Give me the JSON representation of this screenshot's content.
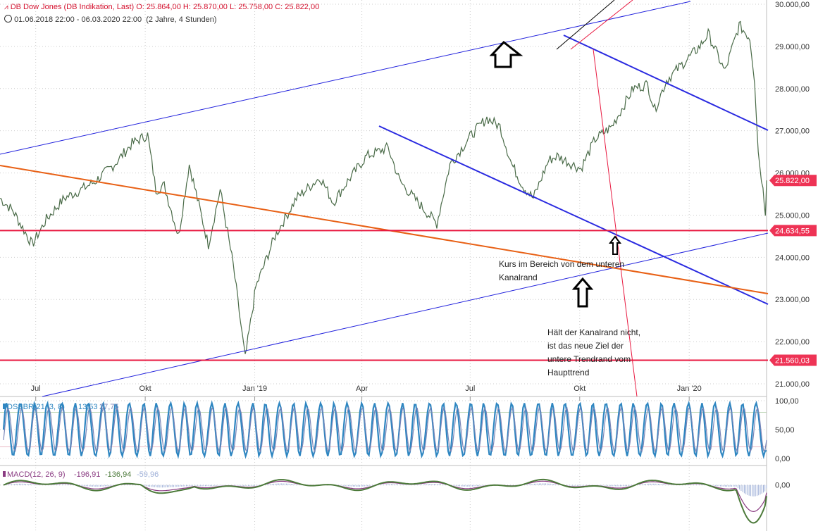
{
  "header": {
    "instrument": "DB Dow Jones (DB Indikation, Last)",
    "open": "O: 25.864,00",
    "high": "H: 25.870,00",
    "low": "L: 25.758,00",
    "close": "C: 25.822,00",
    "period": "01.06.2018 22:00 - 06.03.2020 22:00",
    "interval": "(2 Jahre, 4 Stunden)"
  },
  "colors": {
    "price": "#4a6b48",
    "trend_blue_thin": "#2222dd",
    "trend_blue_thick": "#2a2ae0",
    "support_red": "#e8173f",
    "orange": "#e86015",
    "badge": "#ee3355",
    "osc_blue": "#2e86c1",
    "osc_mid": "#7a86b8",
    "macd_green": "#4c7a3a",
    "macd_purple": "#8a3b82"
  },
  "chart_data": [
    {
      "type": "line",
      "name": "price-panel",
      "y_ticks": [
        "30.000,00",
        "29.000,00",
        "28.000,00",
        "27.000,00",
        "26.000,00",
        "25.000,00",
        "24.000,00",
        "23.000,00",
        "22.000,00",
        "21.000,00"
      ],
      "y_tick_values": [
        30000,
        29000,
        28000,
        27000,
        26000,
        25000,
        24000,
        23000,
        22000,
        21000
      ],
      "ylim": [
        20700,
        30100
      ],
      "x_ticks": [
        "Jul",
        "Okt",
        "Jan '19",
        "Apr",
        "Jul",
        "Okt",
        "Jan '20"
      ],
      "x_tick_dates": [
        "2018-07-01",
        "2018-10-01",
        "2019-01-01",
        "2019-04-01",
        "2019-07-01",
        "2019-10-01",
        "2020-01-01"
      ],
      "xlim": [
        "2018-06-01",
        "2020-03-06"
      ],
      "grid": true,
      "last_price_badge": "25.822,00",
      "last_price": 25822,
      "levels": [
        {
          "label": "24.634,55",
          "value": 24634.55
        },
        {
          "label": "21.560,03",
          "value": 21560.03
        }
      ],
      "series": [
        {
          "x": [
            "2018-06-01",
            "2018-06-12",
            "2018-06-28",
            "2018-07-10",
            "2018-07-25",
            "2018-08-08",
            "2018-08-20",
            "2018-09-05",
            "2018-09-20",
            "2018-10-03",
            "2018-10-10",
            "2018-10-17",
            "2018-10-29",
            "2018-11-07",
            "2018-11-23",
            "2018-12-03",
            "2018-12-14",
            "2018-12-24",
            "2019-01-02",
            "2019-01-18",
            "2019-02-05",
            "2019-02-25",
            "2019-03-08",
            "2019-03-20",
            "2019-04-05",
            "2019-04-23",
            "2019-05-03",
            "2019-05-15",
            "2019-06-03",
            "2019-06-14",
            "2019-07-02",
            "2019-07-15",
            "2019-07-26",
            "2019-08-05",
            "2019-08-14",
            "2019-08-23",
            "2019-09-05",
            "2019-09-12",
            "2019-10-02",
            "2019-10-14",
            "2019-10-28",
            "2019-11-15",
            "2019-11-27",
            "2019-12-03",
            "2019-12-13",
            "2019-12-27",
            "2020-01-10",
            "2020-01-17",
            "2020-01-31",
            "2020-02-12",
            "2020-02-21",
            "2020-02-25",
            "2020-02-28",
            "2020-03-03",
            "2020-03-05",
            "2020-03-06"
          ],
          "values": [
            25400,
            25100,
            24300,
            24900,
            25400,
            25600,
            25800,
            26200,
            26700,
            26900,
            25600,
            25700,
            24500,
            26200,
            24300,
            25600,
            23800,
            21600,
            23300,
            24500,
            25400,
            25900,
            25300,
            25800,
            26400,
            26600,
            25800,
            25400,
            24800,
            26200,
            26900,
            27300,
            27100,
            26200,
            25700,
            25400,
            26300,
            26400,
            26100,
            26800,
            27100,
            28000,
            28100,
            27500,
            28200,
            28600,
            29000,
            29300,
            28400,
            29500,
            29200,
            28200,
            26500,
            25600,
            25100,
            25822
          ]
        }
      ]
    },
    {
      "type": "line",
      "name": "DSSBR",
      "legend": "DSSBR(21, 3, 8)",
      "legend_values": [
        "13,53",
        "27,75"
      ],
      "y_ticks": [
        "100,00",
        "50,00",
        "0,00"
      ],
      "ylim": [
        0,
        100
      ],
      "cycles": 56,
      "last_value": 13.53
    },
    {
      "type": "line",
      "name": "MACD",
      "legend": "MACD(12, 26, 9)",
      "legend_values": [
        "-196,91",
        "-136,94",
        "-59,96"
      ],
      "y_ticks": [
        "0,00"
      ],
      "ylim": [
        -800,
        300
      ],
      "last_values": [
        -196.91,
        -136.94,
        -59.96
      ]
    }
  ],
  "annotations": {
    "note1_line1": "Kurs im Bereich von dem unteren",
    "note1_line2": "Kanalrand",
    "note2_line1": "Hält der Kanalrand nicht,",
    "note2_line2": "ist das neue Ziel der",
    "note2_line3": "untere Trendrand vom",
    "note2_line4": "Haupttrend"
  }
}
